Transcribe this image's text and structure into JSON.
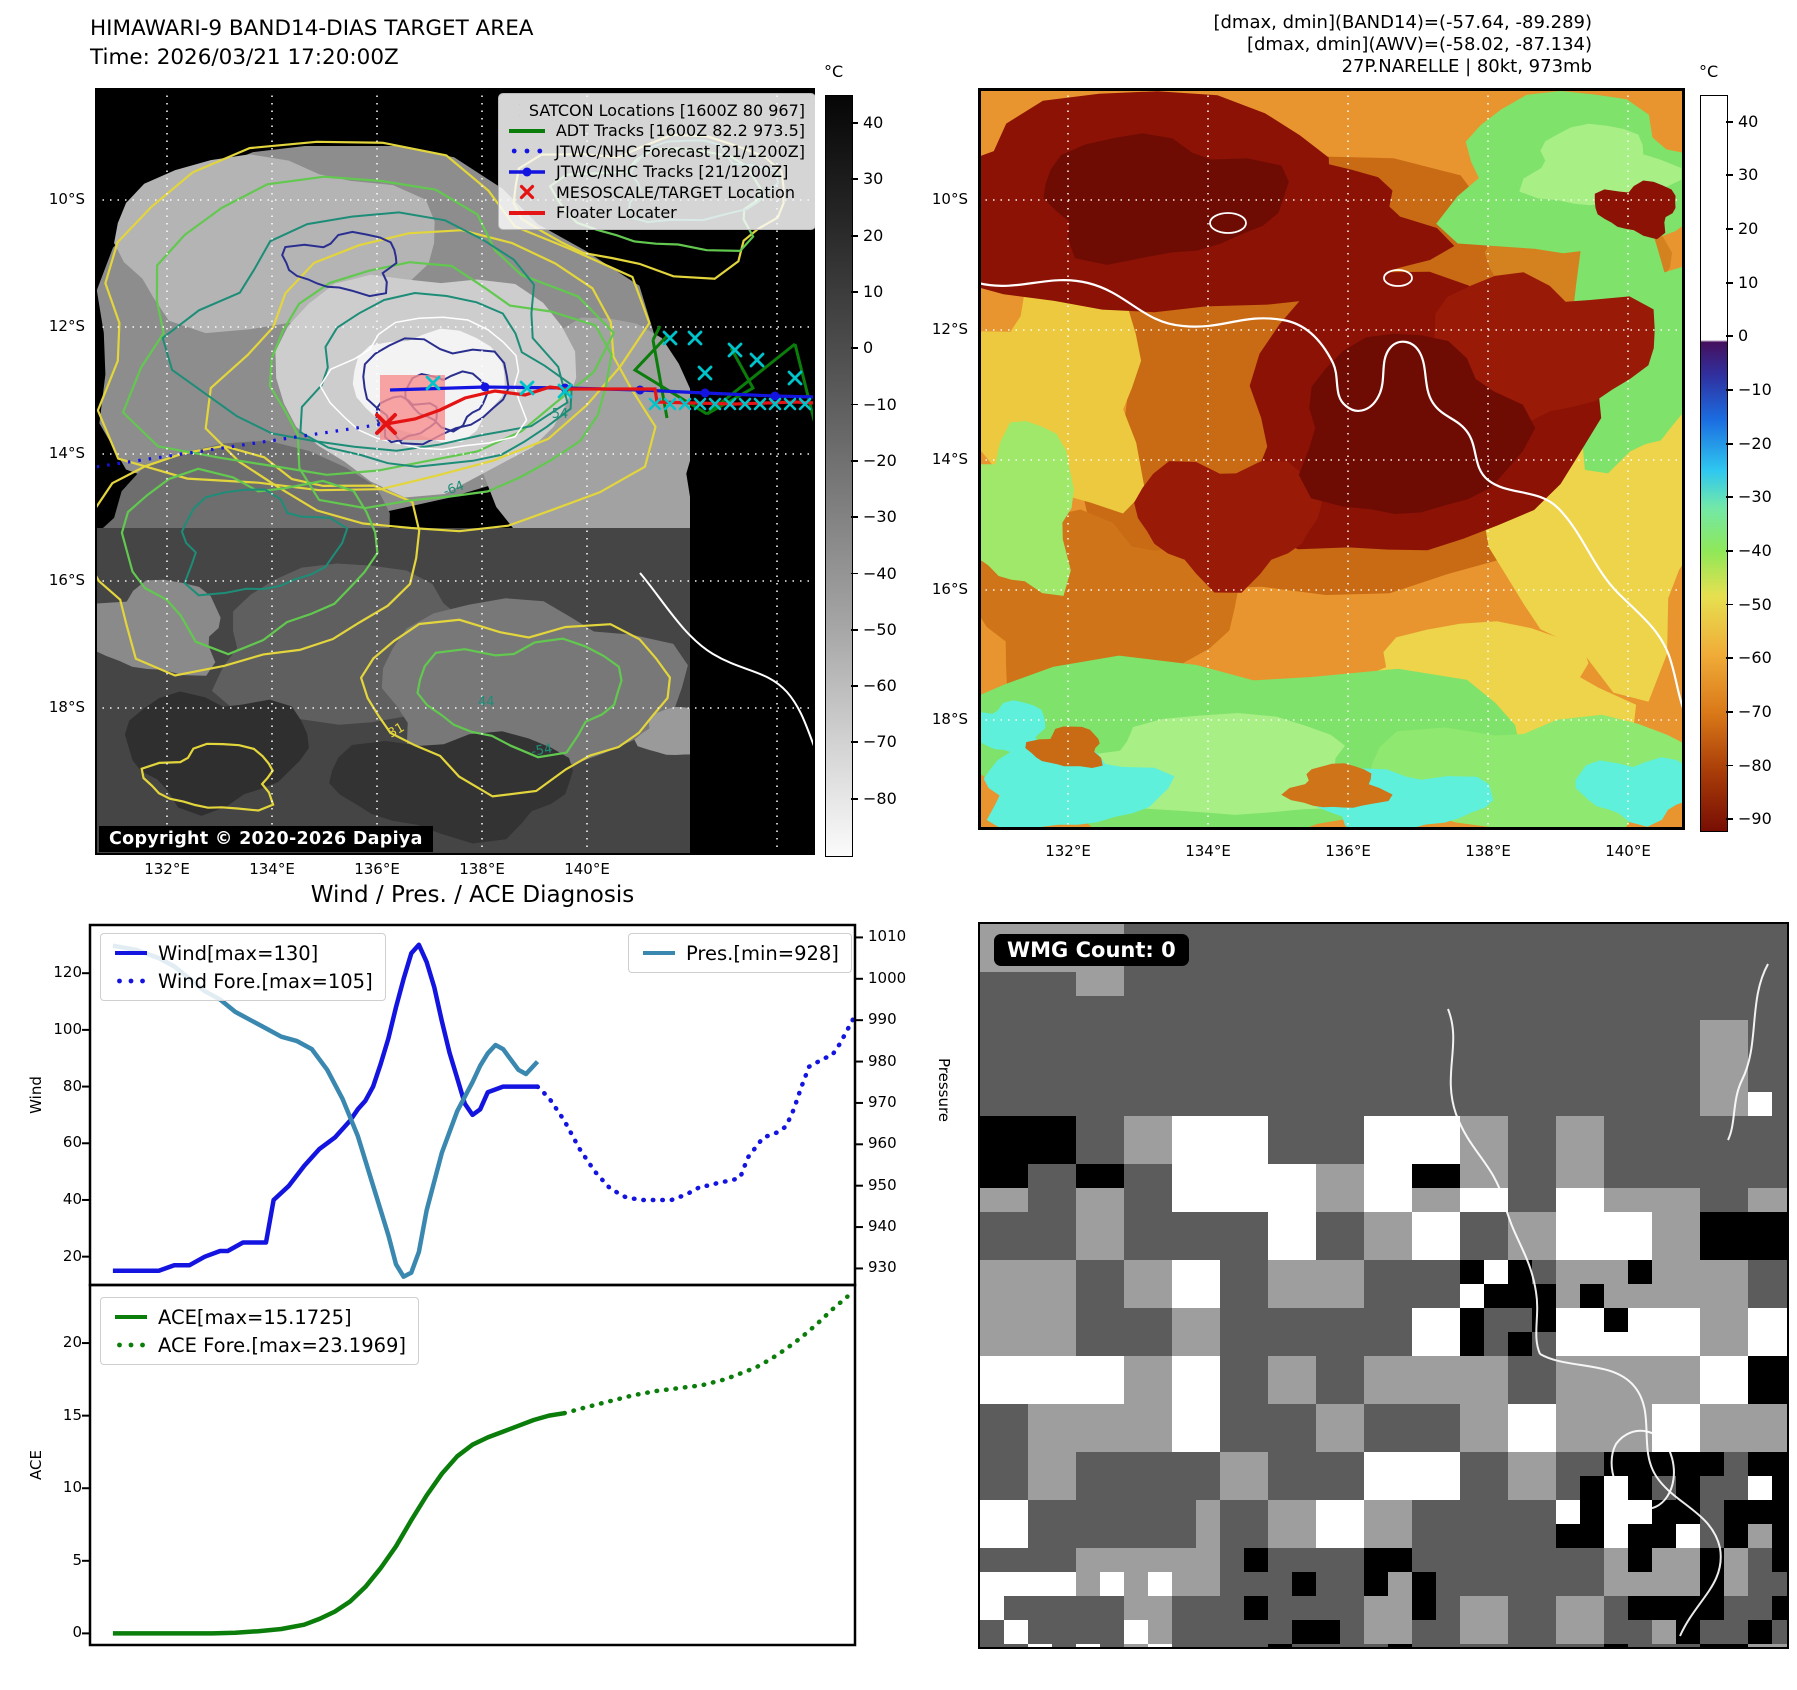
{
  "colors": {
    "wind_line": "#1414e0",
    "pressure_line": "#3a87b0",
    "ace_line": "#0a7d0a",
    "satcon_marker": "#00c4cc",
    "target_marker": "#e41414",
    "adt_track": "#0a7d0a",
    "contour_yellow": "#e3d53c",
    "contour_green": "#62c84f",
    "contour_teal": "#1d8d78",
    "contour_navy": "#2a2f8f"
  },
  "panels": {
    "satellite_bw": {
      "title": "HIMAWARI-9 BAND14-DIAS TARGET AREA",
      "time": "Time: 2026/03/21 17:20:00Z",
      "legend": [
        {
          "label": "SATCON Locations [1600Z 80 967]",
          "marker": "x",
          "color": "#00c4cc"
        },
        {
          "label": "ADT Tracks [1600Z 82.2 973.5]",
          "marker": "solid",
          "color": "#0a7d0a"
        },
        {
          "label": "JTWC/NHC Forecast [21/1200Z]",
          "marker": "dotted",
          "color": "#1414e0"
        },
        {
          "label": "JTWC/NHC Tracks [21/1200Z]",
          "marker": "line-dot",
          "color": "#1414e0"
        },
        {
          "label": "MESOSCALE/TARGET Location",
          "marker": "x",
          "color": "#e41414"
        },
        {
          "label": "Floater Locater",
          "marker": "solid",
          "color": "#e41414"
        }
      ],
      "copyright": "Copyright © 2020-2026 Dapiya",
      "lon_ticks": [
        "132°E",
        "134°E",
        "136°E",
        "138°E",
        "140°E"
      ],
      "lat_ticks": [
        "10°S",
        "12°S",
        "14°S",
        "16°S",
        "18°S"
      ],
      "contour_labels": [
        "-64",
        "-54",
        "44",
        "31"
      ],
      "colorbar": {
        "unit": "°C",
        "ticks": [
          "40",
          "30",
          "20",
          "10",
          "0",
          "−10",
          "−20",
          "−30",
          "−40",
          "−50",
          "−60",
          "−70",
          "−80"
        ]
      }
    },
    "satellite_ir": {
      "header": [
        "[dmax, dmin](BAND14)=(-57.64, -89.289)",
        "[dmax, dmin](AWV)=(-58.02, -87.134)",
        "27P.NARELLE | 80kt, 973mb"
      ],
      "lon_ticks": [
        "132°E",
        "134°E",
        "136°E",
        "138°E",
        "140°E"
      ],
      "lat_ticks": [
        "10°S",
        "12°S",
        "14°S",
        "16°S",
        "18°S"
      ],
      "colorbar": {
        "unit": "°C",
        "ticks": [
          "40",
          "30",
          "20",
          "10",
          "0",
          "−10",
          "−20",
          "−30",
          "−40",
          "−50",
          "−60",
          "−70",
          "−80",
          "−90"
        ]
      }
    },
    "diagnosis": {
      "title": "Wind / Pres. / ACE Diagnosis",
      "ylabel_wind": "Wind",
      "ylabel_pressure": "Pressure",
      "ylabel_ace": "ACE",
      "wind_ticks": [
        "20",
        "40",
        "60",
        "80",
        "100",
        "120"
      ],
      "pressure_ticks": [
        "930",
        "940",
        "950",
        "960",
        "970",
        "980",
        "990",
        "1000",
        "1010"
      ],
      "ace_ticks": [
        "0",
        "5",
        "10",
        "15",
        "20"
      ]
    },
    "wmg": {
      "badge": "WMG Count: 0"
    }
  },
  "chart_data": [
    {
      "type": "line",
      "title": "Wind / Pres. / ACE Diagnosis",
      "ylabel_left": "Wind",
      "ylabel_right": "Pressure",
      "ylim_left": [
        10,
        137
      ],
      "ylim_right": [
        926,
        1013
      ],
      "yticks_left": [
        20,
        40,
        60,
        80,
        100,
        120
      ],
      "yticks_right": [
        930,
        940,
        950,
        960,
        970,
        980,
        990,
        1000,
        1010
      ],
      "grid": false,
      "legend_position": "upper left / upper right",
      "series": [
        {
          "name": "Wind[max=130]",
          "axis": "left",
          "style": "solid",
          "color": "#1414e0",
          "x": [
            3,
            6,
            9,
            11,
            13,
            15,
            17,
            18,
            20,
            22,
            23,
            24,
            26,
            28,
            30,
            32,
            34,
            35,
            36,
            37,
            38,
            39,
            40,
            41,
            42,
            43,
            44,
            45,
            46,
            47,
            48,
            49,
            50,
            51,
            52,
            54,
            56,
            58.5
          ],
          "y": [
            15,
            15,
            15,
            17,
            17,
            20,
            22,
            22,
            25,
            25,
            25,
            40,
            45,
            52,
            58,
            62,
            68,
            72,
            75,
            80,
            88,
            97,
            108,
            118,
            127,
            130,
            124,
            115,
            103,
            92,
            83,
            74,
            70,
            72,
            78,
            80,
            80,
            80
          ]
        },
        {
          "name": "Wind Fore.[max=105]",
          "axis": "left",
          "style": "dotted",
          "color": "#1414e0",
          "x": [
            58.5,
            60,
            62,
            64,
            66,
            68,
            70,
            72,
            74,
            76,
            78,
            80,
            81,
            82,
            84,
            85,
            86,
            88,
            89,
            90,
            91,
            92,
            93,
            94,
            96,
            97,
            98,
            100
          ],
          "y": [
            80,
            76,
            68,
            58,
            50,
            44,
            41,
            40,
            40,
            40,
            42,
            45,
            45,
            46,
            47,
            48,
            55,
            62,
            63,
            64,
            66,
            72,
            80,
            87,
            90,
            91,
            95,
            105
          ]
        },
        {
          "name": "Pres.[min=928]",
          "axis": "right",
          "style": "solid",
          "color": "#3a87b0",
          "x": [
            3,
            6,
            9,
            11,
            13,
            15,
            17,
            19,
            21,
            23,
            25,
            27,
            29,
            31,
            33,
            35,
            37,
            39,
            40,
            41,
            42,
            43,
            44,
            46,
            48,
            50,
            51,
            52,
            53,
            54,
            56,
            57,
            58.5
          ],
          "y": [
            1008,
            1007,
            1005,
            1003,
            1000,
            997,
            995,
            992,
            990,
            988,
            986,
            985,
            983,
            978,
            971,
            962,
            950,
            938,
            931,
            928,
            929,
            934,
            944,
            958,
            968,
            975,
            979,
            982,
            984,
            983,
            978,
            977,
            980
          ]
        }
      ]
    },
    {
      "type": "line",
      "ylabel_left": "ACE",
      "ylim_left": [
        -0.8,
        24
      ],
      "yticks_left": [
        0,
        5,
        10,
        15,
        20
      ],
      "grid": false,
      "legend_position": "upper left",
      "series": [
        {
          "name": "ACE[max=15.1725]",
          "axis": "left",
          "style": "solid",
          "color": "#0a7d0a",
          "x": [
            3,
            8,
            12,
            16,
            19,
            22,
            25,
            28,
            30,
            32,
            34,
            36,
            38,
            40,
            42,
            44,
            46,
            48,
            50,
            52,
            54,
            56,
            58,
            60,
            62
          ],
          "y": [
            0,
            0,
            0,
            0,
            0.05,
            0.15,
            0.3,
            0.6,
            1,
            1.5,
            2.2,
            3.2,
            4.5,
            6,
            7.8,
            9.5,
            11,
            12.2,
            13,
            13.5,
            13.9,
            14.3,
            14.7,
            15,
            15.17
          ]
        },
        {
          "name": "ACE Fore.[max=23.1969]",
          "axis": "left",
          "style": "dotted",
          "color": "#0a7d0a",
          "x": [
            62,
            65,
            68,
            71,
            74,
            77,
            80,
            83,
            85,
            87,
            89,
            91,
            93,
            95,
            97,
            99
          ],
          "y": [
            15.17,
            15.6,
            16,
            16.4,
            16.7,
            16.9,
            17.1,
            17.5,
            17.9,
            18.3,
            18.9,
            19.6,
            20.4,
            21.3,
            22.3,
            23.2
          ]
        }
      ]
    }
  ]
}
